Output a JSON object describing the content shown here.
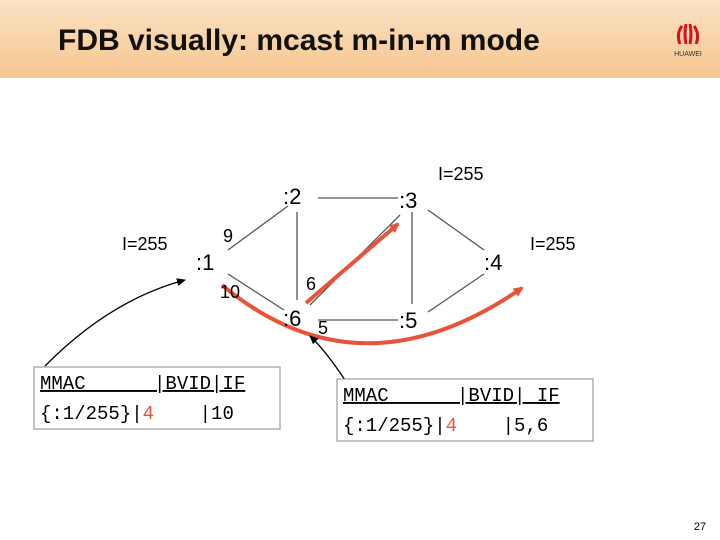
{
  "header": {
    "title": "FDB visually: mcast m-in-m mode",
    "logo": "HUAWEI"
  },
  "nodes": [
    {
      "label": ":1"
    },
    {
      "label": ":2"
    },
    {
      "label": ":3"
    },
    {
      "label": ":4"
    },
    {
      "label": ":5"
    },
    {
      "label": ":6"
    }
  ],
  "port_labels": [
    "9",
    "10",
    "6",
    "5"
  ],
  "annotations": [
    "I=255",
    "I=255",
    "I=255"
  ],
  "tables": [
    {
      "header": "MMAC      |BVID|IF",
      "row": [
        "{:1/255}|",
        "4",
        "    |10"
      ]
    },
    {
      "header": "MMAC      |BVID| IF",
      "row": [
        "{:1/255}|",
        "4",
        "    |5,6"
      ]
    }
  ],
  "page_number": "27"
}
